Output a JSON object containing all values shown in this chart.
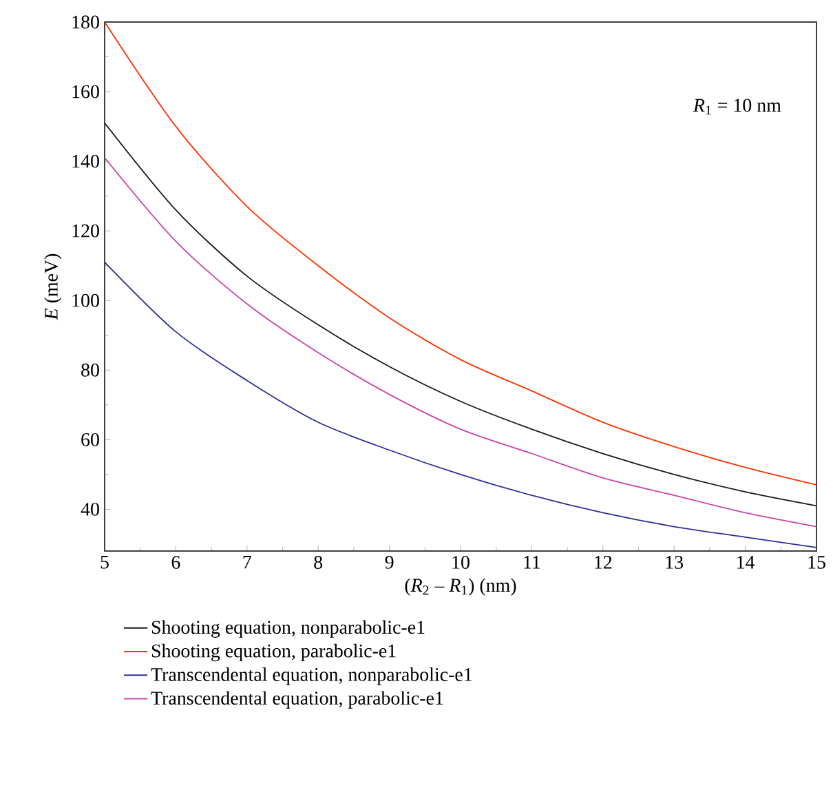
{
  "chart_data": {
    "type": "line",
    "xlabel": "(*R*$_{2}$ – *R*$_{1}$) (nm)",
    "ylabel": "*E* (meV)",
    "annotations": [
      "*R*$_{1}$ = 10 nm"
    ],
    "x": [
      5,
      6,
      7,
      8,
      9,
      10,
      11,
      12,
      13,
      14,
      15
    ],
    "series": [
      {
        "name": "Shooting equation, nonparabolic-e1",
        "color": "#1a1a1a",
        "values": [
          151,
          126,
          107,
          93,
          81,
          71,
          63,
          56,
          50,
          45,
          41
        ]
      },
      {
        "name": "Shooting equation, parabolic-e1",
        "color": "#ff3300",
        "values": [
          180,
          150,
          127,
          110,
          95,
          83,
          74,
          65,
          58,
          52,
          47
        ]
      },
      {
        "name": "Transcendental equation, nonparabolic-e1",
        "color": "#2e2e9a",
        "values": [
          111,
          91,
          77,
          65,
          57,
          50,
          44,
          39,
          35,
          32,
          29
        ]
      },
      {
        "name": "Transcendental equation, parabolic-e1",
        "color": "#cc44aa",
        "values": [
          141,
          117,
          99,
          85,
          73,
          63,
          56,
          49,
          44,
          39,
          35
        ]
      }
    ],
    "xlim": [
      5,
      15
    ],
    "ylim": [
      28,
      180
    ],
    "xticks": [
      5,
      6,
      7,
      8,
      9,
      10,
      11,
      12,
      13,
      14,
      15
    ],
    "yticks": [
      40,
      60,
      80,
      100,
      120,
      140,
      160,
      180
    ],
    "grid": false,
    "legend": "bottom",
    "marker": "none",
    "line_style": "solid"
  }
}
